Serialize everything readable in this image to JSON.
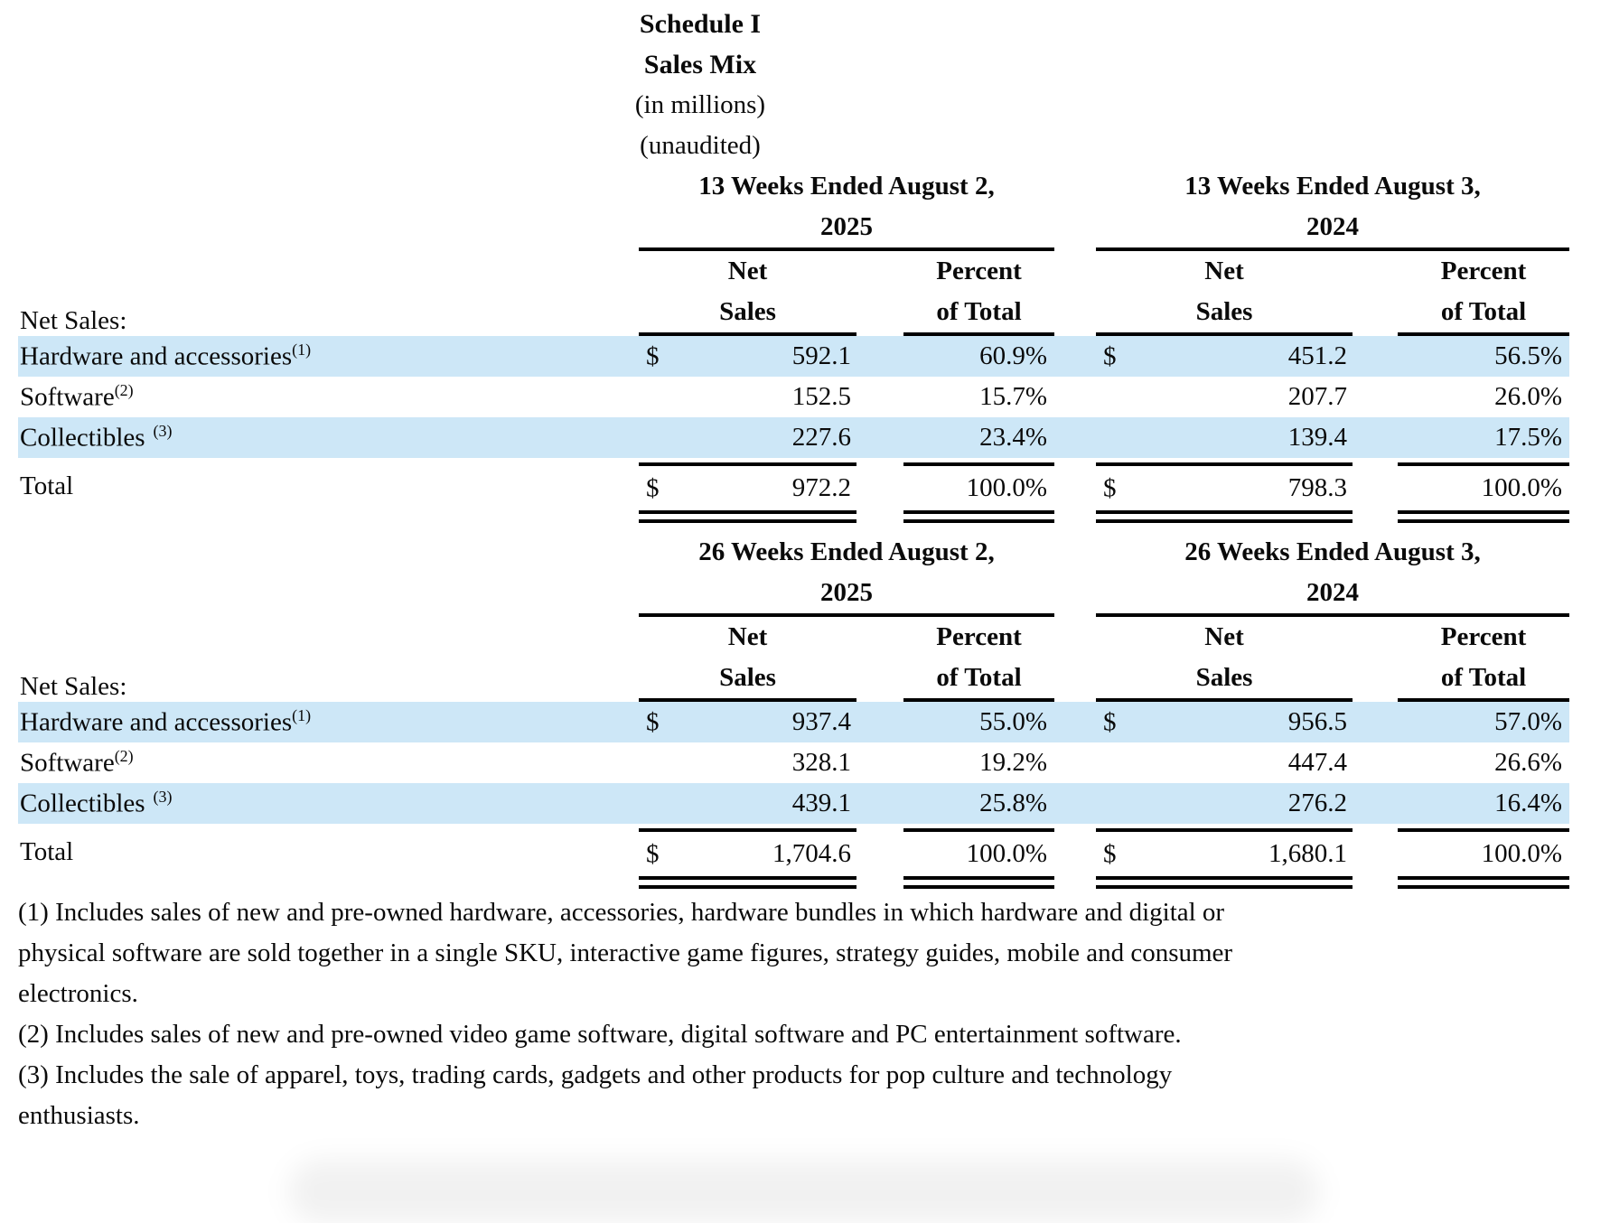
{
  "page": {
    "background_color": "#ffffff",
    "highlight_color": "#cde7f7",
    "rule_color": "#000000"
  },
  "title": {
    "schedule": "Schedule I",
    "subtitle": "Sales Mix",
    "units_note": "(in millions)",
    "audit_note": "(unaudited)"
  },
  "sections": [
    {
      "period_columns": [
        {
          "title_line1": "13 Weeks Ended August 2,",
          "title_line2": "2025"
        },
        {
          "title_line1": "13 Weeks Ended August 3,",
          "title_line2": "2024"
        }
      ],
      "column_headers": {
        "net_sales_line1": "Net",
        "net_sales_line2": "Sales",
        "percent_line1": "Percent",
        "percent_line2": "of Total"
      },
      "section_label": "Net Sales:",
      "rows": [
        {
          "label": "Hardware and accessories",
          "footnote_ref": "(1)",
          "ref_spaced": false,
          "highlight": true,
          "cells": [
            {
              "currency": "$",
              "net_sales": "592.1",
              "percent": "60.9%"
            },
            {
              "currency": "$",
              "net_sales": "451.2",
              "percent": "56.5%"
            }
          ]
        },
        {
          "label": "Software",
          "footnote_ref": "(2)",
          "ref_spaced": false,
          "highlight": false,
          "cells": [
            {
              "currency": "",
              "net_sales": "152.5",
              "percent": "15.7%"
            },
            {
              "currency": "",
              "net_sales": "207.7",
              "percent": "26.0%"
            }
          ]
        },
        {
          "label": "Collectibles",
          "footnote_ref": "(3)",
          "ref_spaced": true,
          "highlight": true,
          "cells": [
            {
              "currency": "",
              "net_sales": "227.6",
              "percent": "23.4%"
            },
            {
              "currency": "",
              "net_sales": "139.4",
              "percent": "17.5%"
            }
          ]
        }
      ],
      "total_row": {
        "label": "Total",
        "cells": [
          {
            "currency": "$",
            "net_sales": "972.2",
            "percent": "100.0%"
          },
          {
            "currency": "$",
            "net_sales": "798.3",
            "percent": "100.0%"
          }
        ]
      }
    },
    {
      "period_columns": [
        {
          "title_line1": "26 Weeks Ended August 2,",
          "title_line2": "2025"
        },
        {
          "title_line1": "26 Weeks Ended August 3,",
          "title_line2": "2024"
        }
      ],
      "column_headers": {
        "net_sales_line1": "Net",
        "net_sales_line2": "Sales",
        "percent_line1": "Percent",
        "percent_line2": "of Total"
      },
      "section_label": "Net Sales:",
      "rows": [
        {
          "label": "Hardware and accessories",
          "footnote_ref": "(1)",
          "ref_spaced": false,
          "highlight": true,
          "cells": [
            {
              "currency": "$",
              "net_sales": "937.4",
              "percent": "55.0%"
            },
            {
              "currency": "$",
              "net_sales": "956.5",
              "percent": "57.0%"
            }
          ]
        },
        {
          "label": "Software",
          "footnote_ref": "(2)",
          "ref_spaced": false,
          "highlight": false,
          "cells": [
            {
              "currency": "",
              "net_sales": "328.1",
              "percent": "19.2%"
            },
            {
              "currency": "",
              "net_sales": "447.4",
              "percent": "26.6%"
            }
          ]
        },
        {
          "label": "Collectibles",
          "footnote_ref": "(3)",
          "ref_spaced": true,
          "highlight": true,
          "cells": [
            {
              "currency": "",
              "net_sales": "439.1",
              "percent": "25.8%"
            },
            {
              "currency": "",
              "net_sales": "276.2",
              "percent": "16.4%"
            }
          ]
        }
      ],
      "total_row": {
        "label": "Total",
        "cells": [
          {
            "currency": "$",
            "net_sales": "1,704.6",
            "percent": "100.0%"
          },
          {
            "currency": "$",
            "net_sales": "1,680.1",
            "percent": "100.0%"
          }
        ]
      }
    }
  ],
  "footnotes": [
    {
      "lines": [
        "(1) Includes sales of new and pre-owned hardware, accessories, hardware bundles in which hardware and digital or",
        "physical software are sold together in a single SKU, interactive game figures, strategy guides, mobile and consumer",
        "electronics."
      ]
    },
    {
      "lines": [
        "(2) Includes sales of new and pre-owned video game software, digital software and PC entertainment software."
      ]
    },
    {
      "lines": [
        "(3) Includes the sale of apparel, toys, trading cards, gadgets and other products for pop culture and technology",
        "enthusiasts."
      ]
    }
  ]
}
